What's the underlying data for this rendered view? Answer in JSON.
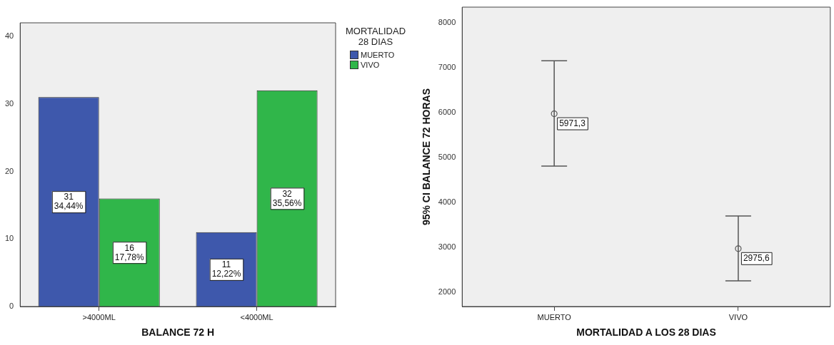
{
  "chart_data": [
    {
      "type": "bar",
      "xlabel": "BALANCE 72 H",
      "legend_title": "MORTALIDAD 28 DIAS",
      "legend": "top right",
      "categories": [
        ">4000ML",
        "<4000ML"
      ],
      "series": [
        {
          "name": "MUERTO",
          "color": "#3e58ac",
          "values": [
            31,
            11
          ],
          "value_labels": [
            "31\n34,44%",
            "11\n12,22%"
          ]
        },
        {
          "name": "VIVO",
          "color": "#30b64a",
          "values": [
            16,
            32
          ],
          "value_labels": [
            "16\n17,78%",
            "32\n35,56%"
          ]
        }
      ],
      "ylim": [
        0,
        42
      ],
      "yticks": [
        0,
        10,
        20,
        30,
        40
      ]
    },
    {
      "type": "scatter",
      "xlabel": "MORTALIDAD A LOS 28 DIAS",
      "ylabel": "95% CI BALANCE 72 HORAS",
      "categories": [
        "MUERTO",
        "VIVO"
      ],
      "values": [
        5971.3,
        2975.6
      ],
      "errors": [
        [
          4810,
          7150
        ],
        [
          2260,
          3700
        ]
      ],
      "value_labels": [
        "5971,3",
        "2975,6"
      ],
      "color": "#555555",
      "marker": "circle",
      "ylim": [
        1690,
        8340
      ],
      "yticks": [
        2000,
        3000,
        4000,
        5000,
        6000,
        7000,
        8000
      ]
    }
  ]
}
